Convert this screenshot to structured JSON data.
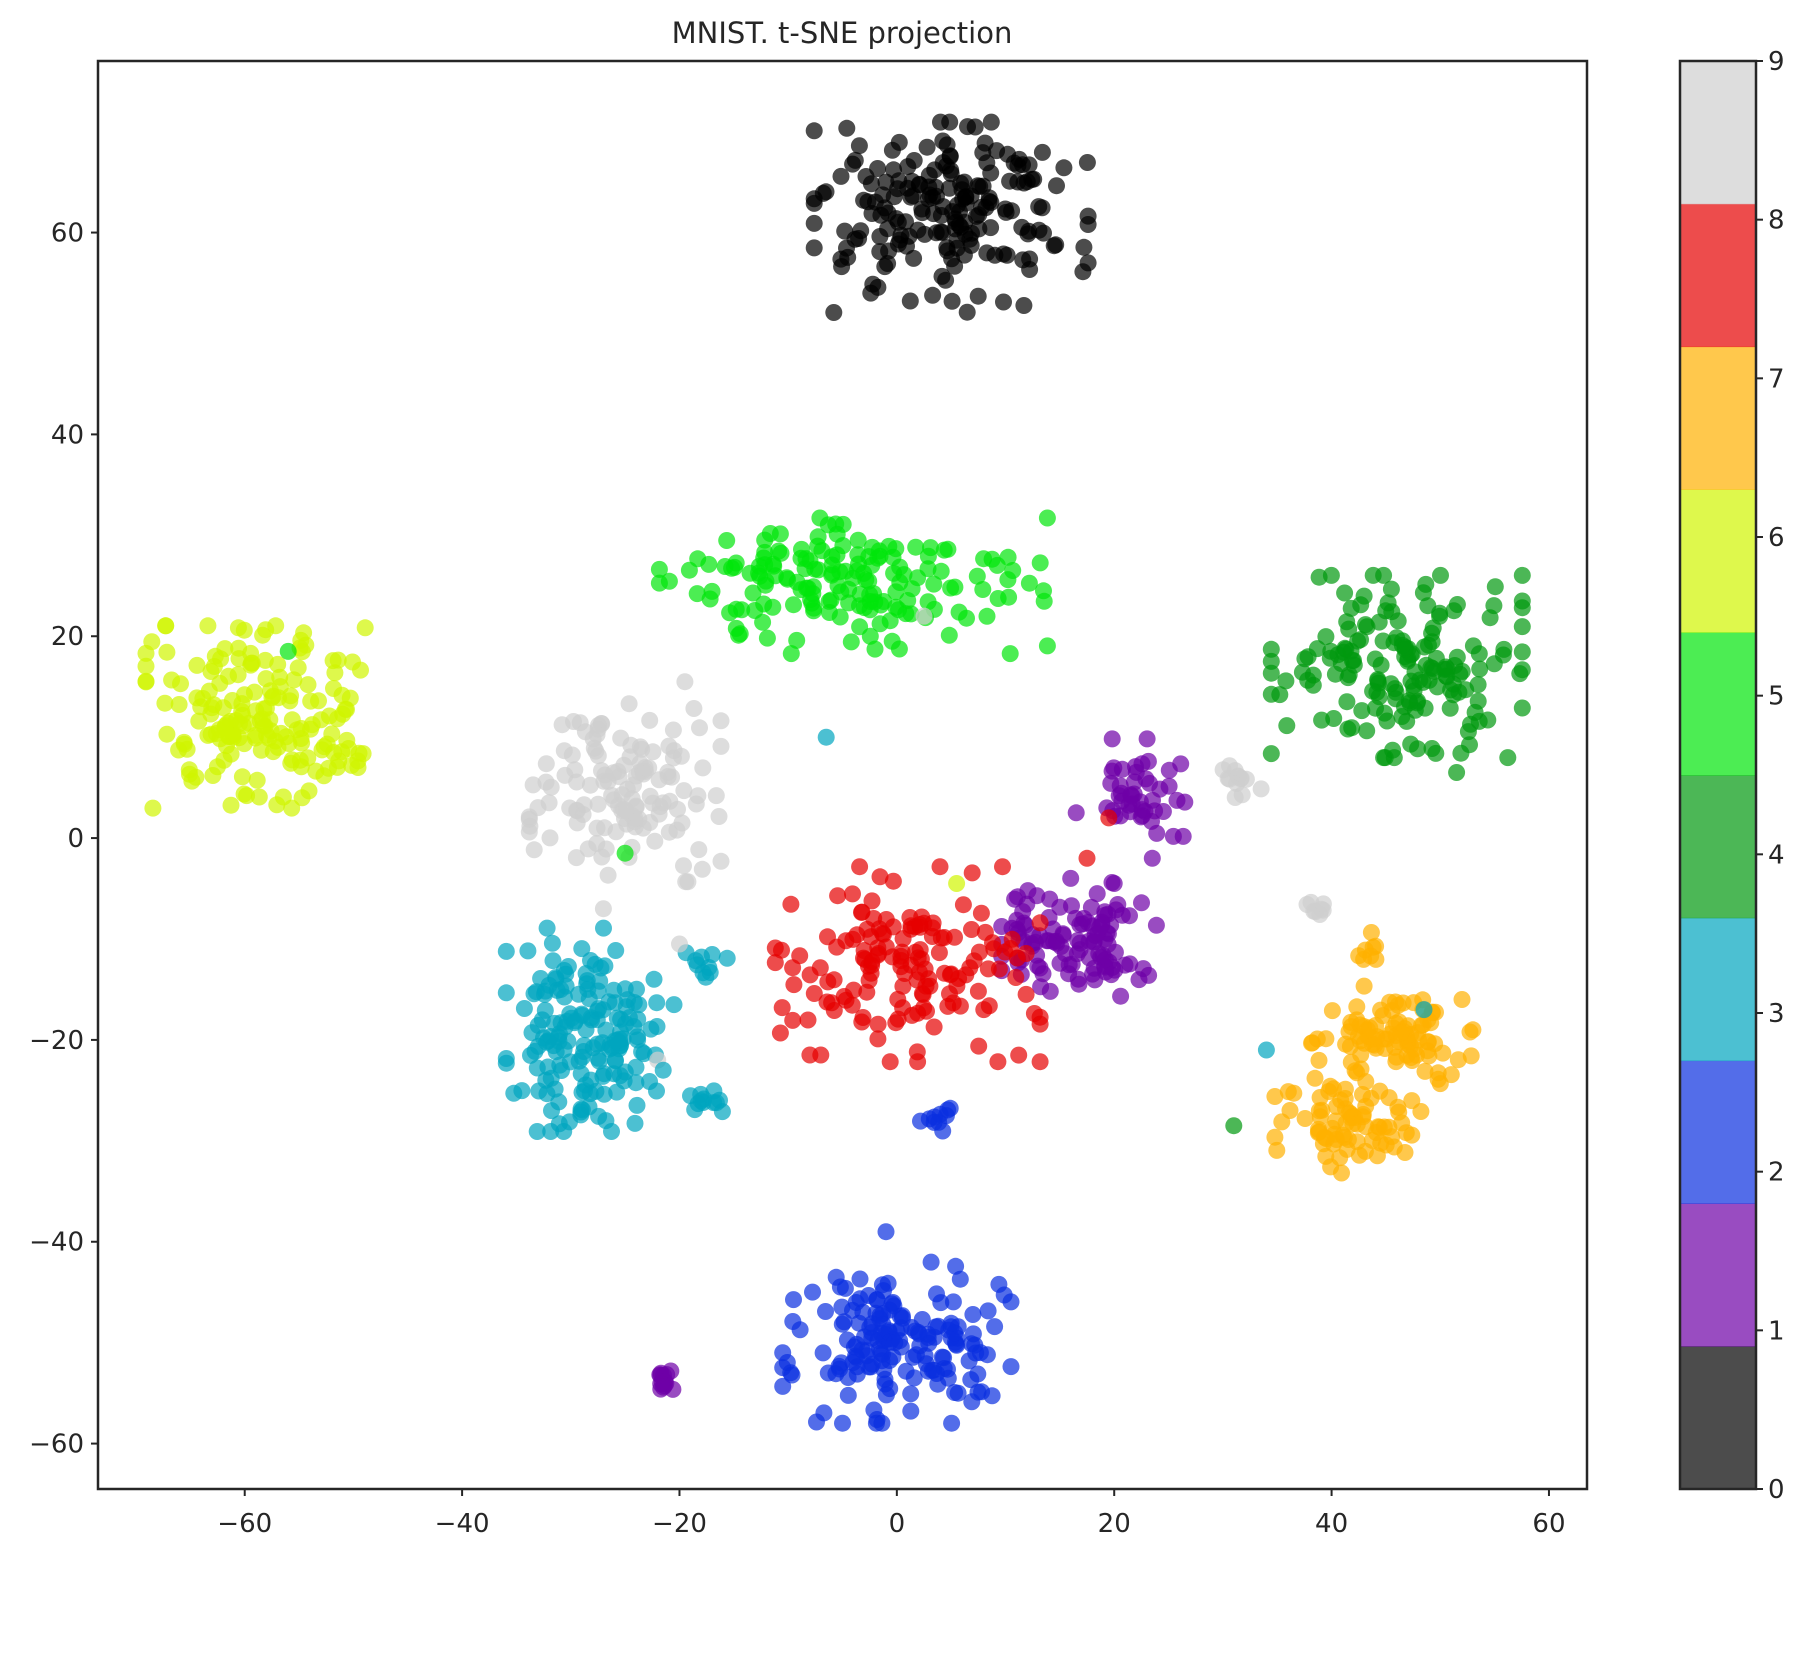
{
  "chart_data": {
    "type": "scatter",
    "title": "MNIST. t-SNE projection",
    "xlabel": "",
    "ylabel": "",
    "xlim": [
      -73.5,
      63.5
    ],
    "ylim": [
      -64.5,
      77
    ],
    "xticks": [
      -60,
      -40,
      -20,
      0,
      20,
      40,
      60
    ],
    "yticks": [
      -60,
      -40,
      -20,
      0,
      20,
      40,
      60
    ],
    "xtick_labels": [
      "−60",
      "−40",
      "−20",
      "0",
      "20",
      "40",
      "60"
    ],
    "ytick_labels": [
      "−60",
      "−40",
      "−20",
      "0",
      "20",
      "40",
      "60"
    ],
    "grid": false,
    "marker_alpha": 0.7,
    "colorbar": {
      "min": 0,
      "max": 9,
      "ticks": [
        "0",
        "1",
        "2",
        "3",
        "4",
        "5",
        "6",
        "7",
        "8",
        "9"
      ],
      "colors": [
        "#000000",
        "#6e00a6",
        "#0a2fe0",
        "#00a5bf",
        "#00990e",
        "#00e50a",
        "#d0f500",
        "#ffb000",
        "#e50000",
        "#cecece"
      ]
    },
    "series": [
      {
        "label": "0",
        "color": "#000000",
        "center": [
          5,
          61.5
        ],
        "spread": [
          6,
          4.5
        ],
        "n": 190
      },
      {
        "label": "6",
        "color": "#d0f500",
        "center": [
          -59,
          12
        ],
        "spread": [
          4.8,
          4.3
        ],
        "n": 180
      },
      {
        "label": "5",
        "color": "#00e50a",
        "center": [
          -4,
          25
        ],
        "spread": [
          8.5,
          3.2
        ],
        "n": 170
      },
      {
        "label": "4",
        "color": "#00990e",
        "center": [
          46,
          17
        ],
        "spread": [
          5.5,
          4.3
        ],
        "n": 170
      },
      {
        "label": "9",
        "color": "#cecece",
        "center": [
          -25,
          4.5
        ],
        "spread": [
          4.2,
          4.2
        ],
        "n": 130
      },
      {
        "label": "1",
        "color": "#6e00a6",
        "center": [
          17,
          -10
        ],
        "spread": [
          3.5,
          2.7
        ],
        "n": 110
      },
      {
        "label": "1",
        "color": "#6e00a6",
        "center": [
          22.5,
          5
        ],
        "spread": [
          1.9,
          2.3
        ],
        "n": 45
      },
      {
        "label": "8",
        "color": "#e50000",
        "center": [
          1,
          -12.5
        ],
        "spread": [
          5.8,
          4.6
        ],
        "n": 150
      },
      {
        "label": "3",
        "color": "#00a5bf",
        "center": [
          -29,
          -19
        ],
        "spread": [
          3.3,
          4.8
        ],
        "n": 170
      },
      {
        "label": "3",
        "color": "#00a5bf",
        "center": [
          -17,
          -26
        ],
        "spread": [
          1.3,
          0.8
        ],
        "n": 12
      },
      {
        "label": "3",
        "color": "#00a5bf",
        "center": [
          -17.5,
          -12.5
        ],
        "spread": [
          0.9,
          0.9
        ],
        "n": 10
      },
      {
        "label": "7",
        "color": "#ffb000",
        "center": [
          45.5,
          -19.5
        ],
        "spread": [
          3.5,
          2.3
        ],
        "n": 90
      },
      {
        "label": "7",
        "color": "#ffb000",
        "center": [
          41.5,
          -28.5
        ],
        "spread": [
          3.2,
          2.6
        ],
        "n": 80
      },
      {
        "label": "2",
        "color": "#0a2fe0",
        "center": [
          0,
          -50
        ],
        "spread": [
          5,
          3.8
        ],
        "n": 170
      },
      {
        "label": "2",
        "color": "#0a2fe0",
        "center": [
          3.5,
          -28
        ],
        "spread": [
          0.9,
          0.6
        ],
        "n": 10
      },
      {
        "label": "1",
        "color": "#6e00a6",
        "center": [
          -21.5,
          -53.5
        ],
        "spread": [
          0.6,
          1.1
        ],
        "n": 14
      },
      {
        "label": "9",
        "color": "#cecece",
        "center": [
          31.5,
          5.8
        ],
        "spread": [
          1.0,
          0.9
        ],
        "n": 14
      },
      {
        "label": "9",
        "color": "#cecece",
        "center": [
          39,
          -7
        ],
        "spread": [
          0.6,
          0.6
        ],
        "n": 8
      },
      {
        "label": "7",
        "color": "#ffb000",
        "center": [
          43.5,
          -9.5
        ],
        "spread": [
          0.7,
          1.2
        ],
        "n": 8
      }
    ],
    "points": [
      {
        "x": -1,
        "y": 65,
        "label": "0"
      },
      {
        "x": 6.5,
        "y": 70.5,
        "label": "0"
      },
      {
        "x": -6.5,
        "y": 10,
        "label": "3"
      },
      {
        "x": -56,
        "y": 18.5,
        "label": "5"
      },
      {
        "x": -25,
        "y": -1.5,
        "label": "5"
      },
      {
        "x": 5.5,
        "y": -4.5,
        "label": "6"
      },
      {
        "x": 2.5,
        "y": 22,
        "label": "9"
      },
      {
        "x": -19.5,
        "y": 15.5,
        "label": "9"
      },
      {
        "x": -20,
        "y": -10.5,
        "label": "9"
      },
      {
        "x": -22,
        "y": -22,
        "label": "9"
      },
      {
        "x": -27,
        "y": -7,
        "label": "9"
      },
      {
        "x": -20.5,
        "y": -16.5,
        "label": "3"
      },
      {
        "x": -21.5,
        "y": -23,
        "label": "3"
      },
      {
        "x": 34,
        "y": -21,
        "label": "3"
      },
      {
        "x": 48.5,
        "y": -17,
        "label": "3"
      },
      {
        "x": 51.5,
        "y": 6.5,
        "label": "4"
      },
      {
        "x": 31,
        "y": -28.5,
        "label": "4"
      },
      {
        "x": 17.5,
        "y": -2,
        "label": "8"
      },
      {
        "x": 19.5,
        "y": 2,
        "label": "8"
      },
      {
        "x": 16.5,
        "y": 2.5,
        "label": "1"
      },
      {
        "x": 20,
        "y": -4.5,
        "label": "1"
      },
      {
        "x": 23.5,
        "y": -2,
        "label": "1"
      },
      {
        "x": 16,
        "y": -4,
        "label": "1"
      },
      {
        "x": -8,
        "y": -21.5,
        "label": "8"
      },
      {
        "x": -7,
        "y": -21.5,
        "label": "8"
      },
      {
        "x": 8,
        "y": -17,
        "label": "8"
      },
      {
        "x": -1,
        "y": -39,
        "label": "2"
      },
      {
        "x": 48,
        "y": -20,
        "label": "7"
      },
      {
        "x": 52,
        "y": -16,
        "label": "7"
      },
      {
        "x": 53,
        "y": -19,
        "label": "7"
      }
    ]
  }
}
